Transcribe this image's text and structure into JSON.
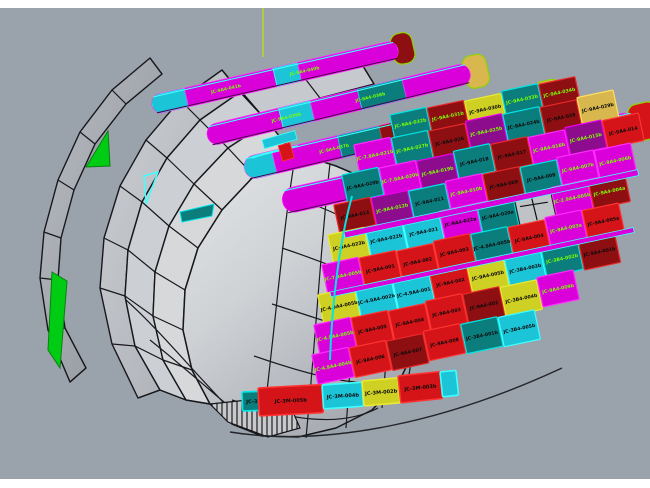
{
  "scene": {
    "background": "#9aa2ab",
    "frame": "#ffffff",
    "axis_line": "#c6e800",
    "wire": "#17171c",
    "label_black": "#0b0b0b",
    "label_green": "#7bff00"
  },
  "palette": {
    "magenta": "#d900d9",
    "purple": "#8d0b8d",
    "teal": "#0c7d7d",
    "cyan": "#1cc4d8",
    "dkred": "#8e0f12",
    "red": "#d41418",
    "yellow": "#cfd024",
    "tan": "#d8b84e",
    "gray": "#c0c3c6",
    "green": "#00cc14"
  },
  "seams": {
    "magenta": "#ff2bff",
    "purple": "#ee00ee",
    "teal": "#00e5e5",
    "cyan": "#40ffff",
    "dkred": "#e82828",
    "red": "#ff3333",
    "yellow": "#eaea30",
    "tan": "#ffe060",
    "gray": "#202020",
    "green": "#39ff39"
  },
  "ribbons": [
    {
      "name": "ribbon-1",
      "labels": [
        "JC-9A4-041b",
        "JC-9A4-040b"
      ]
    },
    {
      "name": "ribbon-2",
      "labels": [
        "JC-9A4-039b",
        "JC-9A4-038b"
      ]
    },
    {
      "name": "ribbon-3",
      "labels": [
        "JC-9A4-037b",
        "JC-9A4-036b"
      ]
    },
    {
      "name": "ribbon-4",
      "labels": [
        "JC-7.9A4-021",
        "JC-9A4-035a"
      ]
    }
  ],
  "mosaic_rows": [
    {
      "tiles": [
        {
          "c": "teal",
          "t": "JC-9A4-032b",
          "g": true
        },
        {
          "c": "dkred",
          "t": "JC-9A4-031b",
          "g": true
        },
        {
          "c": "yellow",
          "t": "JC-9A4-030b"
        },
        {
          "c": "teal",
          "t": "JC-9A4-033b",
          "g": true
        },
        {
          "c": "dkred",
          "t": "JC-9A4-034b",
          "g": true
        }
      ]
    },
    {
      "tiles": [
        {
          "c": "magenta",
          "t": "JC-7.9A4-021b",
          "g": true
        },
        {
          "c": "teal",
          "t": "JC-9A4-027b",
          "g": true
        },
        {
          "c": "dkred",
          "t": "JC-9A4-026"
        },
        {
          "c": "purple",
          "t": "JC-9A4-025b",
          "g": true
        },
        {
          "c": "teal",
          "t": "JC-9A4-024b"
        },
        {
          "c": "dkred",
          "t": "JC-9A4-028"
        },
        {
          "c": "tan",
          "t": "JC-9A4-029b"
        }
      ]
    },
    {
      "tiles": [
        {
          "c": "teal",
          "t": "JC-9A4-020b"
        },
        {
          "c": "magenta",
          "t": "JC-7.9A4-020b",
          "g": true
        },
        {
          "c": "purple",
          "t": "JC-9A4-019b",
          "g": true
        },
        {
          "c": "teal",
          "t": "JC-9A4-018"
        },
        {
          "c": "dkred",
          "t": "JC-9A4-017"
        },
        {
          "c": "magenta",
          "t": "JC-9A4-016b",
          "g": true
        },
        {
          "c": "purple",
          "t": "JC-9A4-015b",
          "g": true
        },
        {
          "c": "red",
          "t": "JC-9A4-014"
        }
      ]
    },
    {
      "tiles": [
        {
          "c": "dkred",
          "t": "JC-9A4-013"
        },
        {
          "c": "purple",
          "t": "JC-9A4-012b",
          "g": true
        },
        {
          "c": "teal",
          "t": "JC-9A4-011"
        },
        {
          "c": "magenta",
          "t": "JC-9A4-010b",
          "g": true
        },
        {
          "c": "dkred",
          "t": "JC-9A4-009"
        },
        {
          "c": "teal",
          "t": "JC-9A4-008"
        },
        {
          "c": "magenta",
          "t": "JC-9A4-007b",
          "g": true
        },
        {
          "c": "magenta",
          "t": "JC-9A4-006b",
          "g": true
        }
      ]
    },
    {
      "tiles": [
        {
          "c": "yellow",
          "t": "JC-9A4-023b"
        },
        {
          "c": "cyan",
          "t": "JC-9A4-022b"
        },
        {
          "c": "cyan",
          "t": "JC-9A4-021"
        },
        {
          "c": "magenta",
          "t": "JC-9A4-022a"
        },
        {
          "c": "teal",
          "t": "JC-9A4-020a"
        },
        {
          "c": "gray",
          "t": ""
        },
        {
          "c": "magenta",
          "t": "JC-2.9A4-005b",
          "g": true
        },
        {
          "c": "dkred",
          "t": "JC-9A4-004a",
          "g": true
        }
      ]
    },
    {
      "tiles": [
        {
          "c": "magenta",
          "t": "JC-7.9A4-005b",
          "g": true
        },
        {
          "c": "red",
          "t": "JC-9A4-001"
        },
        {
          "c": "red",
          "t": "JC-9A4-002"
        },
        {
          "c": "red",
          "t": "JC-9A4-003"
        },
        {
          "c": "teal",
          "t": "JC-4.9A4-005b"
        },
        {
          "c": "red",
          "t": "JC-9A4-004"
        },
        {
          "c": "magenta",
          "t": "JC-9A4-003a",
          "g": true
        },
        {
          "c": "red",
          "t": "JC-9A4-005a"
        }
      ]
    },
    {
      "tiles": [
        {
          "c": "yellow",
          "t": "JC-4.9A4-005b"
        },
        {
          "c": "cyan",
          "t": "JC-4.9A4-002b"
        },
        {
          "c": "cyan",
          "t": "JC-4.9A4-001"
        },
        {
          "c": "red",
          "t": "JC-9A4-002"
        },
        {
          "c": "yellow",
          "t": "JC-9A4-005b"
        },
        {
          "c": "cyan",
          "t": "JC-3B4-003b"
        },
        {
          "c": "teal",
          "t": "JC-3B4-002b",
          "g": true
        },
        {
          "c": "dkred",
          "t": "JC-9A4-001b"
        }
      ]
    },
    {
      "tiles": [
        {
          "c": "magenta",
          "t": "JC-4.9A4-005b",
          "g": true
        },
        {
          "c": "red",
          "t": "JC-9A4-005"
        },
        {
          "c": "red",
          "t": "JC-9A4-004"
        },
        {
          "c": "red",
          "t": "JC-9A4-003"
        },
        {
          "c": "dkred",
          "t": "JC-9A4-002"
        },
        {
          "c": "yellow",
          "t": "JC-3B4-004b"
        },
        {
          "c": "magenta",
          "t": "JC-9A4-009b",
          "g": true
        }
      ]
    },
    {
      "tiles": [
        {
          "c": "magenta",
          "t": "JC-4.9A4-004b",
          "g": true
        },
        {
          "c": "red",
          "t": "JC-9A4-006"
        },
        {
          "c": "dkred",
          "t": "JC-9A4-007"
        },
        {
          "c": "red",
          "t": "JC-9A4-008"
        },
        {
          "c": "teal",
          "t": "JC-3B4-001b"
        },
        {
          "c": "cyan",
          "t": "JC-3B4-005b"
        }
      ]
    }
  ],
  "bottom_row": [
    {
      "c": "teal",
      "t": "JC-3M-006b"
    },
    {
      "c": "red",
      "t": "JC-3M-005b"
    },
    {
      "c": "cyan",
      "t": "JC-3M-004b"
    },
    {
      "c": "yellow",
      "t": "JC-3M-002b"
    },
    {
      "c": "red",
      "t": "JC-3M-003b"
    },
    {
      "c": "cyan",
      "t": "JC-3M-001b"
    }
  ]
}
